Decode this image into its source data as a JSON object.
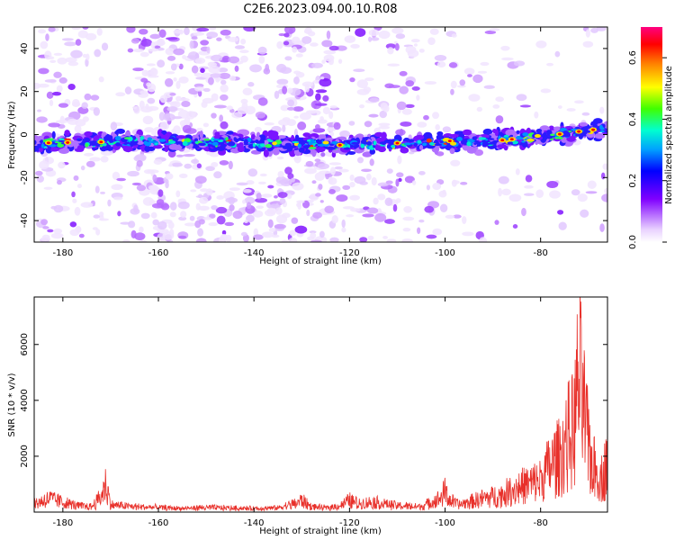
{
  "figure": {
    "title": "C2E6.2023.094.00.10.R08"
  },
  "chart_data": [
    {
      "type": "heatmap",
      "title": "C2E6.2023.094.00.10.R08",
      "xlabel": "Height of straight line (km)",
      "ylabel": "Frequency (Hz)",
      "xlim": [
        -186,
        -66
      ],
      "ylim": [
        -50,
        50
      ],
      "x_ticks": [
        -180,
        -160,
        -140,
        -120,
        -100,
        -80
      ],
      "y_ticks": [
        -40,
        -20,
        0,
        20,
        40
      ],
      "colorbar": {
        "label": "Normalized spectral amplitude",
        "range": [
          0.0,
          0.7
        ],
        "ticks": [
          0.0,
          0.2,
          0.4,
          0.6
        ],
        "colormap": "rainbow (white-purple-blue-cyan-green-yellow-red-magenta)"
      },
      "band_center_hz": [
        {
          "x": -186,
          "y": -4
        },
        {
          "x": -160,
          "y": -3
        },
        {
          "x": -140,
          "y": -4
        },
        {
          "x": -120,
          "y": -5
        },
        {
          "x": -100,
          "y": -3
        },
        {
          "x": -90,
          "y": -3
        },
        {
          "x": -80,
          "y": -1
        },
        {
          "x": -70,
          "y": 2
        },
        {
          "x": -66,
          "y": 3
        }
      ],
      "colors": {
        "band_peak": "#ff0000",
        "band_mid": "#00ff80",
        "band_edge": "#0000ff",
        "noise": "#8000ff"
      }
    },
    {
      "type": "line",
      "xlabel": "Height of straight line (km)",
      "ylabel": "SNR (10 * v/v)",
      "xlim": [
        -186,
        -66
      ],
      "ylim": [
        0,
        7700
      ],
      "x_ticks": [
        -180,
        -160,
        -140,
        -120,
        -100,
        -80
      ],
      "y_ticks": [
        2000,
        4000,
        6000
      ],
      "color": "#e8302a",
      "x": [
        -186,
        -183,
        -180,
        -177,
        -174,
        -172,
        -171,
        -170,
        -165,
        -160,
        -155,
        -150,
        -145,
        -140,
        -135,
        -131,
        -130,
        -128,
        -125,
        -122,
        -120,
        -118,
        -115,
        -110,
        -105,
        -101,
        -100,
        -99,
        -97,
        -95,
        -92,
        -90,
        -88,
        -85,
        -82,
        -80,
        -78,
        -76,
        -74,
        -73,
        -72,
        -71,
        -70,
        -69,
        -68,
        -67,
        -66
      ],
      "y": [
        400,
        700,
        500,
        300,
        250,
        800,
        1500,
        350,
        250,
        200,
        150,
        200,
        180,
        150,
        180,
        450,
        600,
        250,
        180,
        300,
        600,
        400,
        500,
        300,
        250,
        700,
        1100,
        600,
        350,
        500,
        700,
        800,
        900,
        1300,
        1500,
        1700,
        2500,
        3000,
        4200,
        4500,
        7500,
        5500,
        3500,
        2500,
        2000,
        1800,
        3000
      ]
    }
  ]
}
